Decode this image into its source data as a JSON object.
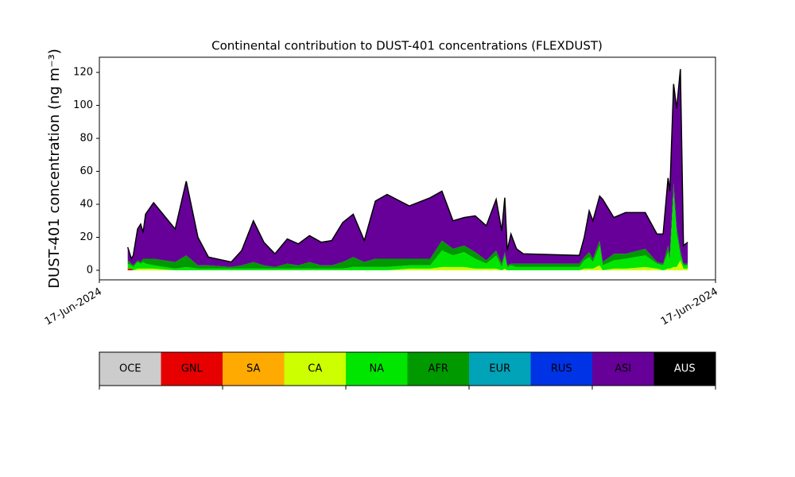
{
  "chart_data": {
    "type": "stackplot",
    "title": "Continental contribution to DUST-401 concentrations (FLEXDUST)",
    "y_label": "DUST-401 concentration (ng m⁻³)",
    "xlim": [
      0,
      100
    ],
    "xticks": [
      {
        "value": 0,
        "label": "17-Jun-2024"
      },
      {
        "value": 100,
        "label": "17-Jun-2024"
      }
    ],
    "ylim": [
      -5.8,
      129.2
    ],
    "yticks": [
      0,
      20,
      40,
      60,
      80,
      100,
      120
    ],
    "x": [
      4.6,
      5.2,
      5.5,
      6.2,
      6.7,
      7.1,
      7.5,
      8.8,
      12.3,
      14.1,
      16.0,
      17.7,
      21.4,
      23.1,
      25.0,
      26.7,
      28.5,
      30.5,
      32.3,
      34.1,
      36.0,
      37.7,
      39.5,
      41.2,
      43.0,
      44.8,
      46.7,
      50.3,
      53.7,
      55.6,
      57.4,
      59.2,
      61.0,
      62.8,
      64.4,
      65.3,
      65.8,
      66.2,
      66.8,
      67.7,
      68.8,
      77.9,
      78.7,
      79.5,
      80.1,
      81.2,
      81.7,
      83.5,
      85.4,
      88.6,
      90.5,
      91.5,
      92.3,
      92.6,
      93.2,
      93.7,
      94.3,
      94.8,
      95.5
    ],
    "series": [
      {
        "name": "OCE",
        "color": "#cccccc",
        "values": [
          0,
          0,
          0,
          0,
          0,
          0,
          0,
          0,
          0,
          0,
          0,
          0,
          0,
          0,
          0,
          0,
          0,
          0,
          0,
          0,
          0,
          0,
          0,
          0,
          0,
          0,
          0,
          0,
          0,
          0,
          0,
          0,
          0,
          0,
          0,
          0,
          0,
          0,
          0,
          0,
          0,
          0,
          0,
          0,
          0,
          0,
          0,
          0,
          0,
          0,
          0,
          0,
          0,
          0,
          0,
          0,
          0,
          0,
          0
        ]
      },
      {
        "name": "GNL",
        "color": "#e60000",
        "values": [
          1,
          1,
          0,
          0,
          0,
          0,
          0,
          0,
          0,
          0,
          0,
          0,
          0,
          0,
          0,
          0,
          0,
          0,
          0,
          0,
          0,
          0,
          0,
          0,
          0,
          0,
          0,
          0,
          0,
          0,
          0,
          0,
          0,
          0,
          0,
          0,
          0,
          0,
          0,
          0,
          0,
          0,
          0,
          0,
          0,
          0,
          0,
          0,
          0,
          0,
          0,
          0,
          0,
          0,
          0,
          0,
          0,
          0,
          0
        ]
      },
      {
        "name": "SA",
        "color": "#ffaa00",
        "values": [
          0,
          0,
          0,
          0,
          0,
          0,
          0,
          0,
          0,
          0,
          0,
          0,
          0,
          0,
          0,
          0,
          0,
          0,
          0,
          0,
          0,
          0,
          0,
          0,
          0,
          0,
          0,
          0,
          0,
          0,
          0,
          0,
          0,
          0,
          0,
          0,
          0,
          0,
          0,
          0,
          0,
          0,
          0,
          0,
          0,
          0,
          0,
          0,
          0,
          0,
          0,
          0,
          0,
          0,
          0,
          0,
          0,
          0,
          0
        ]
      },
      {
        "name": "CA",
        "color": "#ccff00",
        "values": [
          0,
          0,
          0,
          1,
          1,
          1,
          1,
          1,
          0,
          0,
          0,
          0,
          0,
          0,
          0,
          0,
          0,
          0,
          0,
          0,
          0,
          0,
          0,
          0,
          0,
          0,
          0,
          1,
          1,
          2,
          2,
          2,
          1,
          1,
          1,
          0,
          1,
          0,
          0,
          0,
          0,
          0,
          1,
          1,
          1,
          3,
          0,
          1,
          1,
          2,
          1,
          0,
          1,
          1,
          2,
          2,
          6,
          1,
          1
        ]
      },
      {
        "name": "NA",
        "color": "#00e600",
        "values": [
          3,
          2,
          2,
          4,
          3,
          4,
          3,
          2,
          1,
          2,
          1,
          1,
          1,
          1,
          1,
          1,
          1,
          1,
          1,
          1,
          1,
          1,
          1,
          2,
          2,
          2,
          2,
          2,
          2,
          10,
          7,
          9,
          6,
          3,
          8,
          2,
          8,
          2,
          3,
          2,
          2,
          2,
          5,
          7,
          4,
          12,
          3,
          5,
          6,
          7,
          3,
          3,
          10,
          5,
          45,
          20,
          3,
          2,
          2
        ]
      },
      {
        "name": "AFR",
        "color": "#009900",
        "values": [
          2,
          1,
          1,
          1,
          1,
          2,
          3,
          4,
          4,
          7,
          2,
          2,
          1,
          2,
          4,
          2,
          1,
          3,
          2,
          4,
          2,
          2,
          4,
          6,
          3,
          5,
          5,
          4,
          4,
          6,
          4,
          4,
          4,
          2,
          3,
          2,
          2,
          1,
          1,
          2,
          2,
          2,
          2,
          3,
          2,
          3,
          2,
          4,
          3,
          4,
          1,
          1,
          4,
          3,
          6,
          4,
          3,
          1,
          1
        ]
      },
      {
        "name": "EUR",
        "color": "#00a3b8",
        "values": [
          0,
          0,
          0,
          0,
          0,
          0,
          0,
          0,
          0,
          0,
          0,
          0,
          0,
          0,
          0,
          0,
          0,
          0,
          0,
          0,
          0,
          0,
          0,
          0,
          0,
          0,
          0,
          0,
          0,
          0,
          0,
          0,
          0,
          0,
          0,
          0,
          0,
          0,
          0,
          0,
          0,
          0,
          0,
          0,
          0,
          0,
          0,
          0,
          0,
          0,
          0,
          0,
          0,
          0,
          0,
          0,
          0,
          0,
          0
        ]
      },
      {
        "name": "RUS",
        "color": "#0033e6",
        "values": [
          0,
          0,
          0,
          0,
          0,
          0,
          0,
          0,
          0,
          0,
          0,
          0,
          0,
          0,
          0,
          0,
          0,
          0,
          0,
          0,
          0,
          0,
          0,
          0,
          0,
          0,
          0,
          0,
          0,
          0,
          0,
          0,
          0,
          0,
          0,
          0,
          0,
          0,
          0,
          0,
          0,
          0,
          0,
          0,
          0,
          0,
          0,
          0,
          0,
          0,
          0,
          0,
          0,
          0,
          0,
          0,
          0,
          0,
          0
        ]
      },
      {
        "name": "ASI",
        "color": "#660099",
        "values": [
          8,
          3,
          6,
          19,
          23,
          16,
          27,
          34,
          20,
          45,
          17,
          5,
          3,
          9,
          25,
          14,
          8,
          15,
          13,
          16,
          14,
          15,
          24,
          26,
          13,
          35,
          39,
          32,
          37,
          30,
          17,
          17,
          22,
          21,
          31,
          20,
          33,
          9,
          18,
          9,
          6,
          5,
          12,
          25,
          23,
          27,
          38,
          22,
          25,
          22,
          17,
          18,
          41,
          39,
          60,
          72,
          110,
          11,
          13
        ]
      },
      {
        "name": "AUS",
        "color": "#000000",
        "values": [
          0,
          0,
          0,
          0,
          0,
          0,
          0,
          0,
          0,
          0,
          0,
          0,
          0,
          0,
          0,
          0,
          0,
          0,
          0,
          0,
          0,
          0,
          0,
          0,
          0,
          0,
          0,
          0,
          0,
          0,
          0,
          0,
          0,
          0,
          0,
          0,
          0,
          0,
          0,
          0,
          0,
          0,
          0,
          0,
          0,
          0,
          0,
          0,
          0,
          0,
          0,
          0,
          0,
          0,
          0,
          0,
          0,
          0,
          0
        ]
      }
    ]
  }
}
